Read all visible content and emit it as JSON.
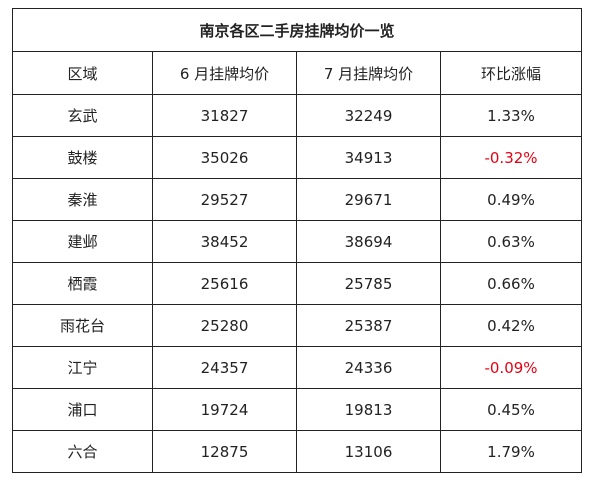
{
  "title": "南京各区二手房挂牌均价一览",
  "headers": [
    "区域",
    "6 月挂牌均价",
    "7 月挂牌均价",
    "环比涨幅"
  ],
  "rows": [
    {
      "district": "玄武",
      "june": "31827",
      "july": "32249",
      "change": "1.33%",
      "negative": false
    },
    {
      "district": "鼓楼",
      "june": "35026",
      "july": "34913",
      "change": "-0.32%",
      "negative": true
    },
    {
      "district": "秦淮",
      "june": "29527",
      "july": "29671",
      "change": "0.49%",
      "negative": false
    },
    {
      "district": "建邺",
      "june": "38452",
      "july": "38694",
      "change": "0.63%",
      "negative": false
    },
    {
      "district": "栖霞",
      "june": "25616",
      "july": "25785",
      "change": "0.66%",
      "negative": false
    },
    {
      "district": "雨花台",
      "june": "25280",
      "july": "25387",
      "change": "0.42%",
      "negative": false
    },
    {
      "district": "江宁",
      "june": "24357",
      "july": "24336",
      "change": "-0.09%",
      "negative": true
    },
    {
      "district": "浦口",
      "june": "19724",
      "july": "19813",
      "change": "0.45%",
      "negative": false
    },
    {
      "district": "六合",
      "june": "12875",
      "july": "13106",
      "change": "1.79%",
      "negative": false
    }
  ],
  "colors": {
    "negative": "#e60012",
    "border": "#222222",
    "text": "#222222"
  }
}
